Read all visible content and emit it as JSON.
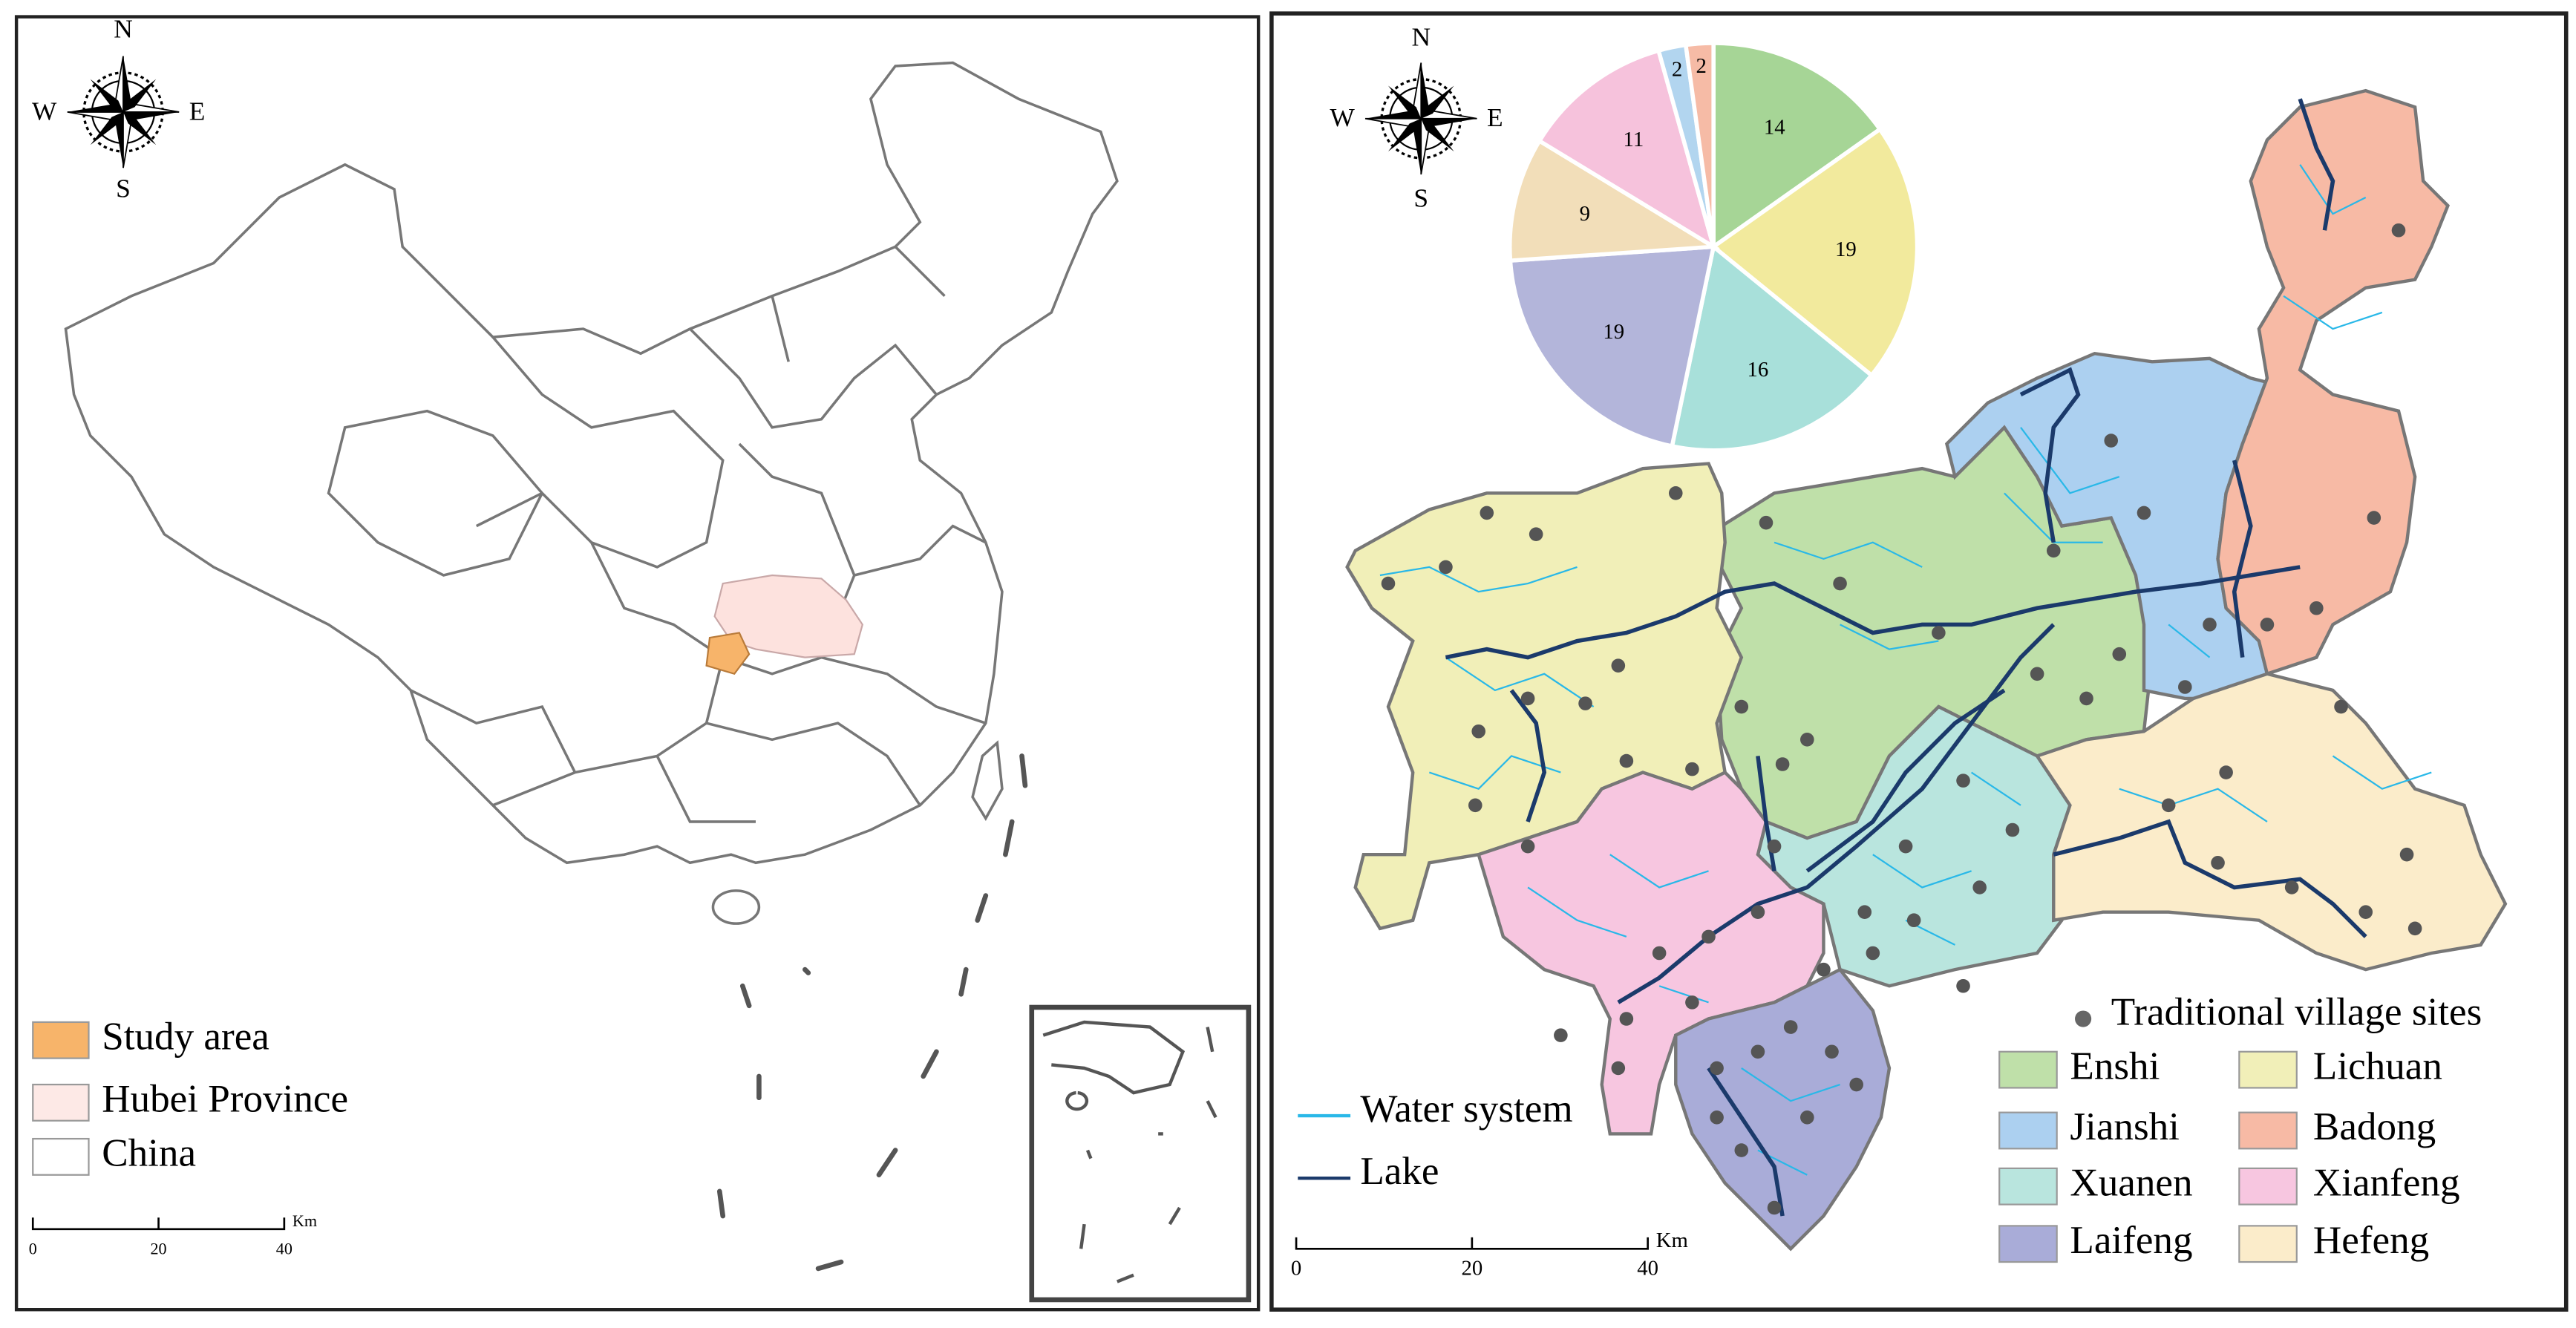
{
  "left_map": {
    "compass": {
      "n": "N",
      "e": "E",
      "s": "S",
      "w": "W"
    },
    "legend": [
      {
        "label": "Study area",
        "color": "#f7b46a"
      },
      {
        "label": "Hubei Province",
        "color": "#fde9e6"
      },
      {
        "label": "China",
        "color": "#ffffff"
      }
    ],
    "scale_bar": {
      "ticks": [
        0,
        20,
        40
      ],
      "unit": "Km"
    }
  },
  "right_map": {
    "compass": {
      "n": "N",
      "e": "E",
      "s": "S",
      "w": "W"
    },
    "pie": {
      "values": [
        14,
        19,
        16,
        19,
        9,
        11,
        2,
        2
      ],
      "colors": [
        "#a6d596",
        "#f2ea9d",
        "#a8e0da",
        "#b3b5da",
        "#f2deb9",
        "#f6c2dc",
        "#b2d5ef",
        "#f6bba6"
      ]
    },
    "legend": {
      "points": "Traditional village sites",
      "lines": [
        {
          "label": "Water system",
          "color": "#29b8e8"
        },
        {
          "label": "Lake",
          "color": "#1b3a6b"
        }
      ],
      "regions": [
        {
          "label": "Enshi",
          "color": "#bfe0a9"
        },
        {
          "label": "Lichuan",
          "color": "#f1efb8"
        },
        {
          "label": "Jianshi",
          "color": "#acd0f0"
        },
        {
          "label": "Badong",
          "color": "#f7baa5"
        },
        {
          "label": "Xuanen",
          "color": "#b9e5de"
        },
        {
          "label": "Xianfeng",
          "color": "#f7c6e0"
        },
        {
          "label": "Laifeng",
          "color": "#a9acd8"
        },
        {
          "label": "Hefeng",
          "color": "#fbecca"
        }
      ]
    },
    "scale_bar": {
      "ticks": [
        0,
        20,
        40
      ],
      "unit": "Km"
    }
  }
}
